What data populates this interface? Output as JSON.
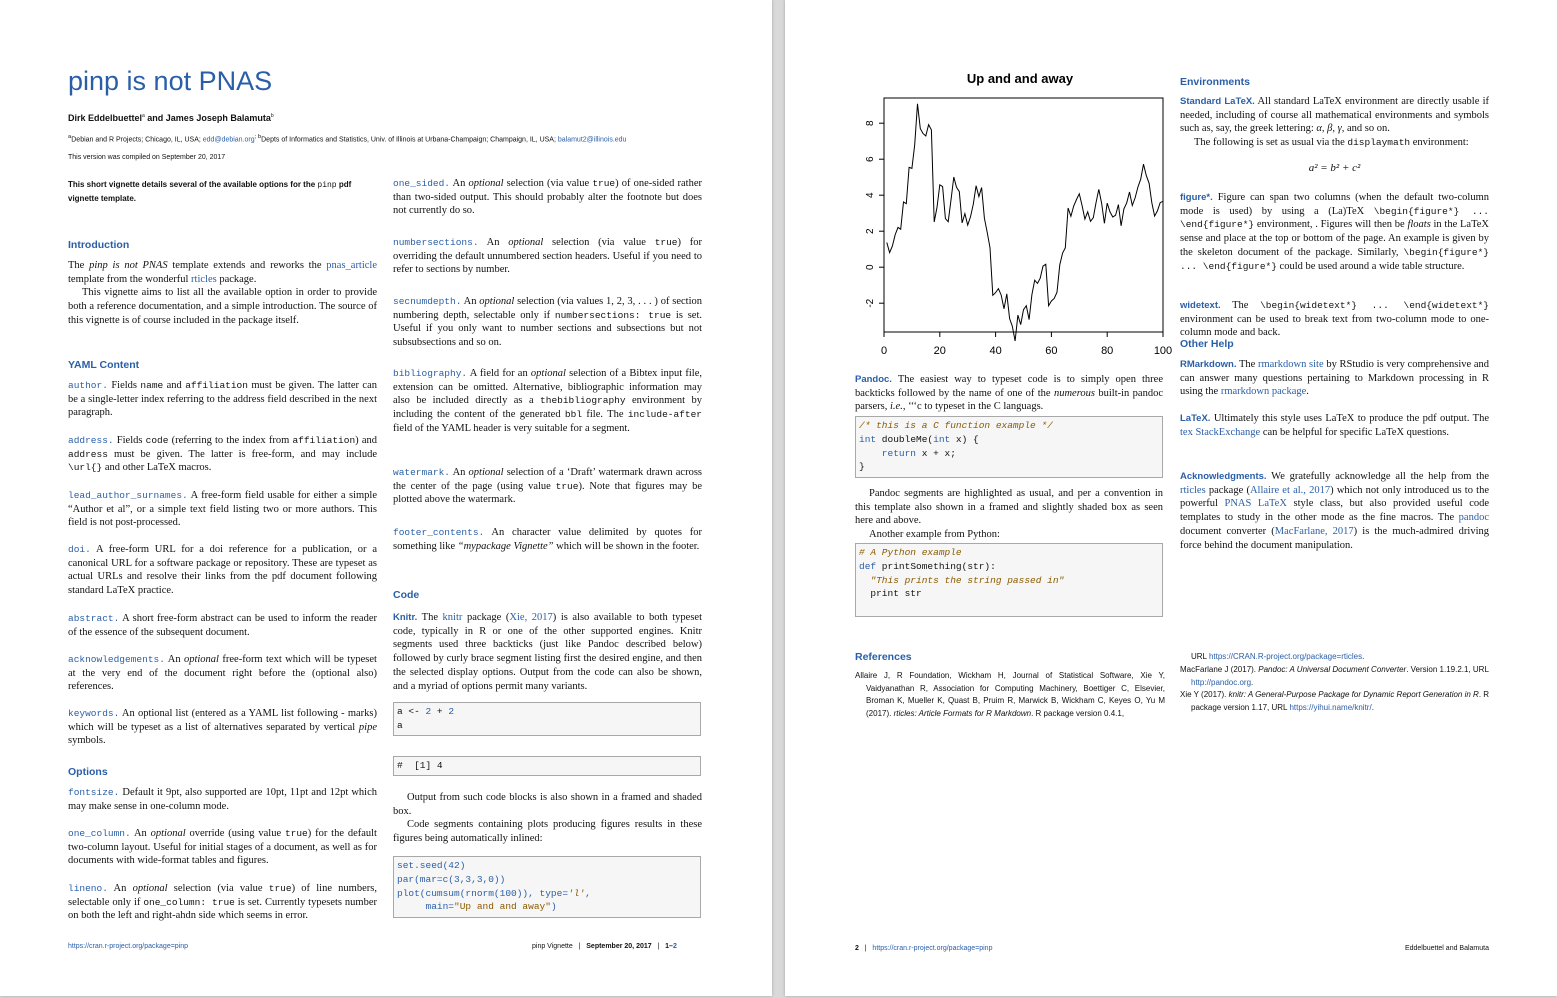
{
  "page1": {
    "title": "pinp is not PNAS",
    "authors": "Dirk Eddelbuettel",
    "authors_sup_a": "a",
    "authors_and": " and James Joseph Balamuta",
    "authors_sup_b": "b",
    "affil_a_sup": "a",
    "affil_a": "Debian and R Projects; Chicago, IL, USA; ",
    "affil_a_email": "edd@debian.org",
    "affil_b_sup": "; b",
    "affil_b": "Depts of Informatics and Statistics, Univ. of Illinois at Urbana-Champaign; Champaign, IL, USA; ",
    "affil_b_email": "balamut2@illinois.edu",
    "compiled": "This version was compiled on September 20, 2017",
    "abstract_1": "This short vignette details several of the available options for the ",
    "abstract_code": "pinp",
    "abstract_2": " pdf vignette template.",
    "intro": {
      "heading": "Introduction",
      "p1_a": "The ",
      "p1_em": "pinp is not PNAS",
      "p1_b": " template extends and reworks the ",
      "p1_link": "pnas_article",
      "p1_c": " template from the wonderful ",
      "p1_link2": "rticles",
      "p1_d": " package.",
      "p2": "This vignette aims to list all the available option in order to provide both a reference documentation, and a simple introduction. The source of this vignette is of course included in the package itself."
    },
    "yaml": {
      "heading": "YAML Content",
      "author_kw": "author.",
      "author_a": " Fields ",
      "author_c1": "name",
      "author_b": " and ",
      "author_c2": "affiliation",
      "author_c": " must be given. The latter can be a single-letter index referring to the address field described in the next paragraph.",
      "address_kw": "address.",
      "address_a": " Fields ",
      "address_c1": "code",
      "address_b": " (referring to the index from ",
      "address_c2": "affiliation",
      "address_c": ") and ",
      "address_c3": "address",
      "address_d": " must be given. The latter is free-form, and may include ",
      "address_c4": "\\url{}",
      "address_e": " and other LaTeX macros.",
      "lead_kw": "lead_author_surnames.",
      "lead_text": " A free-form field usable for either a simple “Author et al”, or a simple text field listing two or more authors. This field is not post-processed.",
      "doi_kw": "doi.",
      "doi_text": " A free-form URL for a doi reference for a publication, or a canonical URL for a software package or repository. These are typeset as actual URLs and resolve their links from the pdf document following standard LaTeX practice.",
      "abstract_kw": "abstract.",
      "abstract_text": " A short free-form abstract can be used to inform the reader of the essence of the subsequent document.",
      "ack_kw": "acknowledgements.",
      "ack_a": " An ",
      "ack_em": "optional",
      "ack_b": " free-form text which will be typeset at the very end of the document right before the (optional also) references.",
      "keywords_kw": "keywords.",
      "keywords_a": " An optional list (entered as a YAML list following - marks) which will be typeset as a list of alternatives separated by vertical ",
      "keywords_em": "pipe",
      "keywords_b": " symbols."
    },
    "options": {
      "heading": "Options",
      "fontsize_kw": "fontsize.",
      "fontsize_text": " Default it 9pt, also supported are 10pt, 11pt and 12pt which may make sense in one-column mode.",
      "onecol_kw": "one_column.",
      "onecol_a": " An ",
      "onecol_em": "optional",
      "onecol_b": " override (using value ",
      "onecol_c": "true",
      "onecol_d": ") for the default two-column layout. Useful for initial stages of a document, as well as for documents with wide-format tables and figures.",
      "lineno_kw": "lineno.",
      "lineno_a": " An ",
      "lineno_em": "optional",
      "lineno_b": " selection (via value ",
      "lineno_c": "true",
      "lineno_d": ") of line numbers, selectable only if ",
      "lineno_e": "one_column: true",
      "lineno_f": " is set. Currently typesets number on both the left and right-ahdn side which seems in error.",
      "onesided_kw": "one_sided.",
      "onesided_a": " An ",
      "onesided_em": "optional",
      "onesided_b": " selection (via value ",
      "onesided_c": "true",
      "onesided_d": ") of one-sided rather than two-sided output. This should probably alter the footnote but does not currently do so.",
      "numsec_kw": "numbersections.",
      "numsec_a": " An ",
      "numsec_em": "optional",
      "numsec_b": " selection (via value ",
      "numsec_c": "true",
      "numsec_d": ") for overriding the default unnumbered section headers. Useful if you need to refer to sections by number.",
      "secnum_kw": "secnumdepth.",
      "secnum_a": " An ",
      "secnum_em": "optional",
      "secnum_b": " selection (via values 1, 2, 3, . . . ) of section numbering depth, selectable only if ",
      "secnum_c": "numbersections: true",
      "secnum_d": " is set. Useful if you only want to number sections and subsections but not subsubsections and so on.",
      "bib_kw": "bibliography.",
      "bib_a": " A field for an ",
      "bib_em": "optional",
      "bib_b": " selection of a Bibtex input file, extension can be omitted. Alternative, bibliographic information may also be included directly as a ",
      "bib_c": "thebibliography",
      "bib_d": " environment by including the content of the generated ",
      "bib_e": "bbl",
      "bib_f": " file. The ",
      "bib_g": "include-after",
      "bib_h": " field of the YAML header is very suitable for a segment.",
      "wm_kw": "watermark.",
      "wm_a": " An ",
      "wm_em": "optional",
      "wm_b": " selection of a ‘Draft’ watermark drawn across the center of the page (using value ",
      "wm_c": "true",
      "wm_d": "). Note that figures may be plotted above the watermark.",
      "footer_kw": "footer_contents.",
      "footer_a": " An character value delimited by quotes for something like ",
      "footer_em": "“mypackage Vignette”",
      "footer_b": " which will be shown in the footer."
    },
    "code": {
      "heading": "Code",
      "knitr_lead": "Knitr.",
      "knitr_a": " The ",
      "knitr_link": "knitr",
      "knitr_b": " package (",
      "knitr_cite": "Xie, 2017",
      "knitr_c": ") is also available to both typeset code, typically in R or one of the other supported engines. Knitr segments used three backticks (just like Pandoc described below) followed by curly brace segment listing first the desired engine, and then the selected display options. Output from the code can also be shown, and a myriad of options permit many variants.",
      "box1_l1_a": "a <- ",
      "box1_l1_b": "2",
      "box1_l1_c": " + ",
      "box1_l1_d": "2",
      "box1_l2": "a",
      "box2": "#  [1] 4",
      "p_after1": "Output from such code blocks is also shown in a framed and shaded box.",
      "p_after2": "Code segments containing plots producing figures results in these figures being automatically inlined:",
      "box3_l1": "set.seed(42)",
      "box3_l2": "par(mar=c(3,3,3,0))",
      "box3_l3_a": "plot(cumsum(rnorm(100)), type=",
      "box3_l3_b": "'l'",
      "box3_l3_c": ",",
      "box3_l4_a": "     main=",
      "box3_l4_b": "\"Up and and away\"",
      "box3_l4_c": ")"
    },
    "footer_url": "https://cran.r-project.org/package=pinp",
    "footer_vignette": "pinp Vignette",
    "footer_sep": "|",
    "footer_date": "September 20, 2017",
    "footer_pages_a": "1–",
    "footer_pages_b": "2"
  },
  "page2": {
    "chart_data": {
      "type": "line",
      "title": "Up and and away",
      "xlabel": "",
      "ylabel": "",
      "xlim": [
        0,
        100
      ],
      "ylim": [
        -3.6,
        9.4
      ],
      "xticks": [
        "0",
        "20",
        "40",
        "60",
        "80",
        "100"
      ],
      "yticks": [
        "-2",
        "0",
        "2",
        "4",
        "6",
        "8"
      ],
      "x": [
        1,
        2,
        3,
        4,
        5,
        6,
        7,
        8,
        9,
        10,
        11,
        12,
        13,
        14,
        15,
        16,
        17,
        18,
        19,
        20,
        21,
        22,
        23,
        24,
        25,
        26,
        27,
        28,
        29,
        30,
        31,
        32,
        33,
        34,
        35,
        36,
        37,
        38,
        39,
        40,
        41,
        42,
        43,
        44,
        45,
        46,
        47,
        48,
        49,
        50,
        51,
        52,
        53,
        54,
        55,
        56,
        57,
        58,
        59,
        60,
        61,
        62,
        63,
        64,
        65,
        66,
        67,
        68,
        69,
        70,
        71,
        72,
        73,
        74,
        75,
        76,
        77,
        78,
        79,
        80,
        81,
        82,
        83,
        84,
        85,
        86,
        87,
        88,
        89,
        90,
        91,
        92,
        93,
        94,
        95,
        96,
        97,
        98,
        99,
        100
      ],
      "values": [
        1.37,
        0.81,
        1.18,
        1.81,
        2.21,
        2.11,
        3.62,
        3.53,
        5.55,
        5.49,
        6.8,
        9.08,
        7.7,
        7.42,
        7.29,
        7.92,
        7.63,
        2.51,
        3.32,
        4.58,
        4.48,
        2.7,
        2.53,
        3.74,
        5.01,
        4.44,
        4.2,
        2.46,
        2.98,
        2.34,
        2.8,
        3.5,
        4.53,
        3.92,
        4.43,
        2.72,
        1.94,
        1.08,
        -1.56,
        -1.41,
        -1.19,
        -1.55,
        -2.31,
        -1.48,
        -2.85,
        -3.28,
        -4.1,
        -2.66,
        -3.19,
        -2.36,
        -2.14,
        -2.91,
        -1.53,
        -0.72,
        -0.9,
        -0.61,
        0.06,
        0.16,
        -2.14,
        -1.88,
        -1.74,
        -1.39,
        0.14,
        0.79,
        1.07,
        3.29,
        2.83,
        3.4,
        3.76,
        4.08,
        3.42,
        2.67,
        3.08,
        2.55,
        2.75,
        3.58,
        4.33,
        3.56,
        2.44,
        3.56,
        3.07,
        2.79,
        2.89,
        3.48,
        2.3,
        3.24,
        3.57,
        4.18,
        3.43,
        3.85,
        4.45,
        4.89,
        5.73,
        5.09,
        4.66,
        3.59,
        2.84,
        3.13,
        3.59,
        3.66
      ]
    },
    "pandoc_lead": "Pandoc.",
    "pandoc_a": " The easiest way to typeset code is to simply open three backticks followed by the name of one of the ",
    "pandoc_em": "numerous",
    "pandoc_b": " built-in pandoc parsers, ",
    "pandoc_em2": "i.e.",
    "pandoc_c": ", ‘‘‘c to typeset in the C languags.",
    "cbox_l1": "/* this is a C function example */",
    "cbox_l2_a": "int",
    "cbox_l2_b": " doubleMe(",
    "cbox_l2_c": "int",
    "cbox_l2_d": " x) {",
    "cbox_l3_a": "    return",
    "cbox_l3_b": " x + x;",
    "cbox_l4": "}",
    "pandoc_p2": "Pandoc segments are highlighted as usual, and per a convention in this template also shown in a framed and slightly shaded box as seen here and above.",
    "pandoc_p3": "Another example from Python:",
    "pybox_l1": "# A Python example",
    "pybox_l2_a": "def",
    "pybox_l2_b": " printSomething(str):",
    "pybox_l3": "  \"This prints the string passed in\"",
    "pybox_l4": "  print str",
    "env_heading": "Environments",
    "latex_lead": "Standard LaTeX.",
    "latex_a": " All standard LaTeX environment are directly usable if needed, including of course all mathematical environments and symbols such as, say, the greek lettering: ",
    "latex_greek": "α, β, γ,",
    "latex_b": " and so on.",
    "latex_p2_a": "The following is set as usual via the ",
    "latex_p2_code": "displaymath",
    "latex_p2_b": " environment:",
    "equation": "a² = b² + c²",
    "figure_lead": "figure*.",
    "figure_a": " Figure can span two columns (when the default two-column mode is used) by using a (La)TeX ",
    "figure_c1": "\\begin{figure*} ... \\end{figure*}",
    "figure_b": " environment, . Figures will then be ",
    "figure_em": "floats",
    "figure_c": " in the LaTeX sense and place at the top or bottom of the page. An example is given by the skeleton document of the package. Similarly, ",
    "figure_c2": "\\begin{figure*} ... \\end{figure*}",
    "figure_d": " could be used around a wide table structure.",
    "wide_lead": "widetext.",
    "wide_a": " The ",
    "wide_c1": "\\begin{widetext*} ... \\end{widetext*}",
    "wide_b": " environment can be used to break text from two-column mode to one-column mode and back.",
    "help_heading": "Other Help",
    "rmd_lead": "RMarkdown.",
    "rmd_a": " The ",
    "rmd_link": "rmarkdown site",
    "rmd_b": " by RStudio is very comprehensive and can answer many questions pertaining to Markdown processing in R using the ",
    "rmd_link2": "rmarkdown package",
    "rmd_c": ".",
    "ltx_lead": "LaTeX.",
    "ltx_a": " Ultimately this style uses LaTeX to produce the pdf output. The ",
    "ltx_link": "tex StackExchange",
    "ltx_b": " can be helpful for specific LaTeX questions.",
    "ack_lead": "Acknowledgments.",
    "ack_a": " We gratefully acknowledge all the help from the ",
    "ack_link1": "rticles",
    "ack_b": " package (",
    "ack_cite1": "Allaire et al., 2017",
    "ack_c": ") which not only introduced us to the powerful ",
    "ack_link2": "PNAS LaTeX",
    "ack_d": " style class, but also provided useful code templates to study in the other mode as the fine macros. The ",
    "ack_link3": "pandoc",
    "ack_e": " document converter (",
    "ack_cite2": "MacFarlane, 2017",
    "ack_f": ") is the much-admired driving force behind the document manipulation.",
    "refs_heading": "References",
    "ref1_a": "Allaire J, R Foundation, Wickham H, Journal of Statistical Software, Xie Y, Vaidyanathan R, Association for Computing Machinery, Boettiger C, Elsevier, Broman K, Mueller K, Quast B, Pruim R, Marwick B, Wickham C, Keyes O, Yu M (2017). ",
    "ref1_em": "rticles: Article Formats for R Markdown",
    "ref1_b": ". R package version 0.4.1,",
    "ref1_url_a": "URL ",
    "ref1_url": "https://CRAN.R-project.org/package=rticles",
    "ref1_url_b": ".",
    "ref2_a": "MacFarlane J (2017). ",
    "ref2_em": "Pandoc: A Universal Document Converter",
    "ref2_b": ". Version 1.19.2.1, URL ",
    "ref2_url": "http://pandoc.org",
    "ref2_c": ".",
    "ref3_a": "Xie Y (2017). ",
    "ref3_em": "knitr: A General-Purpose Package for Dynamic Report Generation in R",
    "ref3_b": ". R package version 1.17, URL ",
    "ref3_url": "https://yihui.name/knitr/",
    "ref3_c": ".",
    "footer_num": "2",
    "footer_sep": "|",
    "footer_url": "https://cran.r-project.org/package=pinp",
    "footer_right": "Eddelbuettel and Balamuta"
  }
}
